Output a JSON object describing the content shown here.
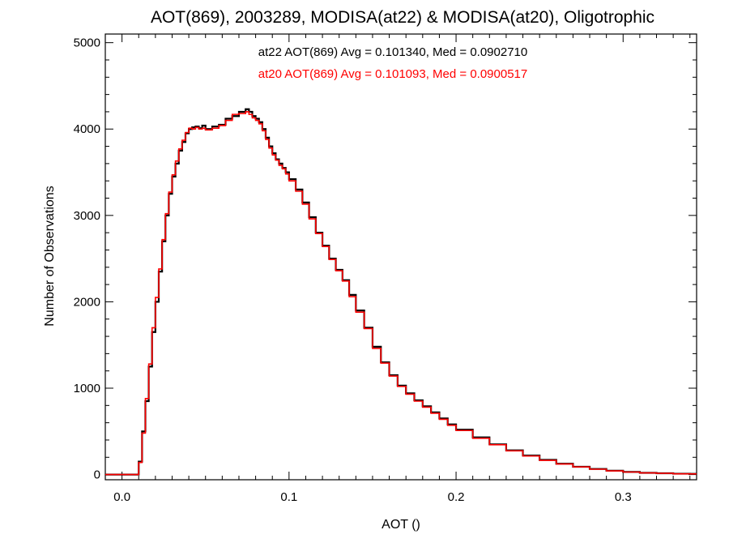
{
  "chart_data": {
    "type": "line",
    "style": "step-histogram",
    "title": "AOT(869), 2003289, MODISA(at22) & MODISA(at20), Oligotrophic",
    "xlabel": "AOT ()",
    "ylabel": "Number of Observations",
    "xlim": [
      -0.01,
      0.344
    ],
    "ylim": [
      -60,
      5100
    ],
    "xticks": [
      0.0,
      0.1,
      0.2,
      0.3
    ],
    "xtick_labels": [
      "0.0",
      "0.1",
      "0.2",
      "0.3"
    ],
    "yticks": [
      0,
      1000,
      2000,
      3000,
      4000,
      5000
    ],
    "ytick_labels": [
      "0",
      "1000",
      "2000",
      "3000",
      "4000",
      "5000"
    ],
    "grid": false,
    "annotations": [
      {
        "text": "at22 AOT(869) Avg = 0.101340, Med = 0.0902710",
        "color": "#000000"
      },
      {
        "text": "at20 AOT(869) Avg = 0.101093, Med = 0.0900517",
        "color": "#ff0000"
      }
    ],
    "series": [
      {
        "color": "#000000",
        "x": [
          -0.01,
          0.0,
          0.005,
          0.01,
          0.012,
          0.014,
          0.016,
          0.018,
          0.02,
          0.022,
          0.024,
          0.026,
          0.028,
          0.03,
          0.032,
          0.034,
          0.036,
          0.038,
          0.04,
          0.042,
          0.044,
          0.046,
          0.048,
          0.05,
          0.054,
          0.058,
          0.062,
          0.066,
          0.07,
          0.074,
          0.076,
          0.078,
          0.08,
          0.082,
          0.084,
          0.086,
          0.088,
          0.09,
          0.092,
          0.094,
          0.096,
          0.098,
          0.1,
          0.104,
          0.108,
          0.112,
          0.116,
          0.12,
          0.124,
          0.128,
          0.132,
          0.136,
          0.14,
          0.145,
          0.15,
          0.155,
          0.16,
          0.165,
          0.17,
          0.175,
          0.18,
          0.185,
          0.19,
          0.195,
          0.2,
          0.21,
          0.22,
          0.23,
          0.24,
          0.25,
          0.26,
          0.27,
          0.28,
          0.29,
          0.3,
          0.31,
          0.32,
          0.33,
          0.34
        ],
        "y": [
          0,
          0,
          0,
          150,
          500,
          850,
          1250,
          1650,
          2000,
          2350,
          2700,
          3000,
          3250,
          3450,
          3600,
          3750,
          3850,
          3950,
          4000,
          4020,
          4030,
          4010,
          4040,
          4000,
          4030,
          4050,
          4120,
          4150,
          4200,
          4230,
          4200,
          4150,
          4120,
          4080,
          4000,
          3900,
          3800,
          3720,
          3650,
          3600,
          3550,
          3500,
          3420,
          3300,
          3150,
          2980,
          2800,
          2650,
          2500,
          2370,
          2250,
          2080,
          1900,
          1700,
          1480,
          1300,
          1150,
          1030,
          940,
          860,
          790,
          720,
          650,
          580,
          520,
          430,
          350,
          280,
          220,
          170,
          125,
          90,
          65,
          45,
          30,
          20,
          15,
          10,
          8
        ]
      },
      {
        "color": "#ff0000",
        "x": [
          -0.01,
          0.0,
          0.005,
          0.01,
          0.012,
          0.014,
          0.016,
          0.018,
          0.02,
          0.022,
          0.024,
          0.026,
          0.028,
          0.03,
          0.032,
          0.034,
          0.036,
          0.038,
          0.04,
          0.042,
          0.044,
          0.046,
          0.048,
          0.05,
          0.054,
          0.058,
          0.062,
          0.066,
          0.07,
          0.074,
          0.076,
          0.078,
          0.08,
          0.082,
          0.084,
          0.086,
          0.088,
          0.09,
          0.092,
          0.094,
          0.096,
          0.098,
          0.1,
          0.104,
          0.108,
          0.112,
          0.116,
          0.12,
          0.124,
          0.128,
          0.132,
          0.136,
          0.14,
          0.145,
          0.15,
          0.155,
          0.16,
          0.165,
          0.17,
          0.175,
          0.18,
          0.185,
          0.19,
          0.195,
          0.2,
          0.21,
          0.22,
          0.23,
          0.24,
          0.25,
          0.26,
          0.27,
          0.28,
          0.29,
          0.3,
          0.31,
          0.32,
          0.33,
          0.34
        ],
        "y": [
          0,
          0,
          0,
          140,
          480,
          880,
          1280,
          1700,
          2050,
          2380,
          2720,
          3020,
          3270,
          3470,
          3630,
          3770,
          3870,
          3960,
          4010,
          4000,
          4020,
          4000,
          4010,
          3990,
          4010,
          4040,
          4100,
          4170,
          4180,
          4200,
          4170,
          4130,
          4100,
          4060,
          3980,
          3880,
          3780,
          3700,
          3640,
          3580,
          3540,
          3480,
          3400,
          3280,
          3130,
          2960,
          2790,
          2640,
          2490,
          2360,
          2240,
          2060,
          1880,
          1690,
          1460,
          1290,
          1140,
          1020,
          930,
          850,
          780,
          710,
          640,
          570,
          510,
          420,
          345,
          275,
          215,
          165,
          122,
          88,
          62,
          43,
          29,
          19,
          14,
          9,
          7
        ]
      }
    ]
  }
}
